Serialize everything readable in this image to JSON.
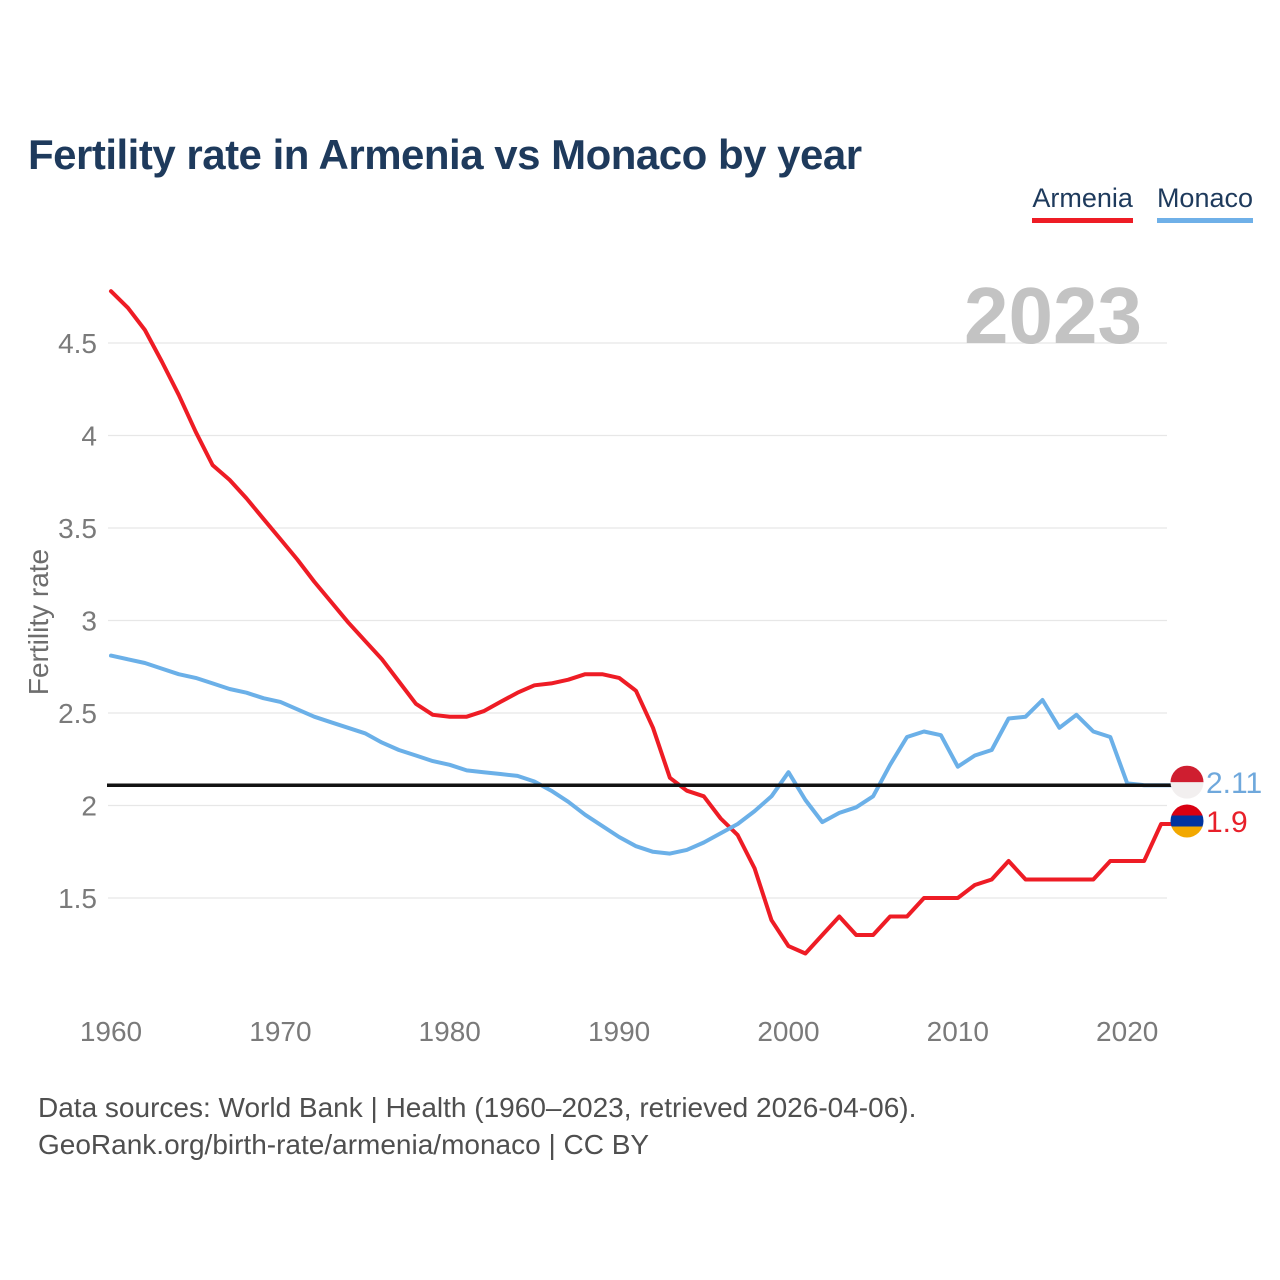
{
  "header": {
    "title": "Fertility rate in Armenia vs Monaco by year"
  },
  "legend": {
    "items": [
      {
        "label": "Armenia",
        "color": "#ee1c25"
      },
      {
        "label": "Monaco",
        "color": "#6fb0e8"
      }
    ]
  },
  "watermark": "2023",
  "footer": {
    "line1": "Data sources: World Bank | Health (1960–2023, retrieved 2026-04-06).",
    "line2": "GeoRank.org/birth-rate/armenia/monaco | CC BY"
  },
  "chart_data": {
    "type": "line",
    "title": "Fertility rate in Armenia vs Monaco by year",
    "xlabel": "",
    "ylabel": "Fertility rate",
    "grid": "horizontal",
    "grid_color": "#e7e7e7",
    "tick_color": "#7a7a7a",
    "ylim": [
      1.1,
      4.9
    ],
    "xlim": [
      1960,
      2023
    ],
    "yticks": [
      4.5,
      4,
      3.5,
      3,
      2.5,
      2,
      1.5
    ],
    "xticks": [
      1960,
      1970,
      1980,
      1990,
      2000,
      2010,
      2020
    ],
    "reference_line": {
      "value": 2.11,
      "color": "#121212"
    },
    "x": [
      1960,
      1961,
      1962,
      1963,
      1964,
      1965,
      1966,
      1967,
      1968,
      1969,
      1970,
      1971,
      1972,
      1973,
      1974,
      1975,
      1976,
      1977,
      1978,
      1979,
      1980,
      1981,
      1982,
      1983,
      1984,
      1985,
      1986,
      1987,
      1988,
      1989,
      1990,
      1991,
      1992,
      1993,
      1994,
      1995,
      1996,
      1997,
      1998,
      1999,
      2000,
      2001,
      2002,
      2003,
      2004,
      2005,
      2006,
      2007,
      2008,
      2009,
      2010,
      2011,
      2012,
      2013,
      2014,
      2015,
      2016,
      2017,
      2018,
      2019,
      2020,
      2021,
      2022,
      2023
    ],
    "series": [
      {
        "name": "Armenia",
        "color": "#ee1c25",
        "end_label": "1.9",
        "end_label_color": "#e8202a",
        "flag_colors": [
          "#d90012",
          "#0033a0",
          "#f2a800"
        ],
        "values": [
          4.78,
          4.69,
          4.57,
          4.4,
          4.22,
          4.02,
          3.84,
          3.76,
          3.66,
          3.55,
          3.44,
          3.33,
          3.21,
          3.1,
          2.99,
          2.89,
          2.79,
          2.67,
          2.55,
          2.49,
          2.48,
          2.48,
          2.51,
          2.56,
          2.61,
          2.65,
          2.66,
          2.68,
          2.71,
          2.71,
          2.69,
          2.62,
          2.42,
          2.15,
          2.08,
          2.05,
          1.93,
          1.84,
          1.66,
          1.38,
          1.24,
          1.2,
          1.3,
          1.4,
          1.3,
          1.3,
          1.4,
          1.4,
          1.5,
          1.5,
          1.5,
          1.57,
          1.6,
          1.7,
          1.6,
          1.6,
          1.6,
          1.6,
          1.6,
          1.7,
          1.7,
          1.7,
          1.9,
          1.9
        ]
      },
      {
        "name": "Monaco",
        "color": "#6bb0e8",
        "end_label": "2.11",
        "end_label_color": "#6fa8dc",
        "flag_colors": [
          "#cf1e30",
          "#f2efef"
        ],
        "values": [
          2.81,
          2.79,
          2.77,
          2.74,
          2.71,
          2.69,
          2.66,
          2.63,
          2.61,
          2.58,
          2.56,
          2.52,
          2.48,
          2.45,
          2.42,
          2.39,
          2.34,
          2.3,
          2.27,
          2.24,
          2.22,
          2.19,
          2.18,
          2.17,
          2.16,
          2.13,
          2.08,
          2.02,
          1.95,
          1.89,
          1.83,
          1.78,
          1.75,
          1.74,
          1.76,
          1.8,
          1.85,
          1.9,
          1.97,
          2.05,
          2.18,
          2.03,
          1.91,
          1.96,
          1.99,
          2.05,
          2.22,
          2.37,
          2.4,
          2.38,
          2.21,
          2.27,
          2.3,
          2.47,
          2.48,
          2.57,
          2.42,
          2.49,
          2.4,
          2.37,
          2.12,
          2.11,
          2.11,
          2.11
        ]
      }
    ]
  }
}
